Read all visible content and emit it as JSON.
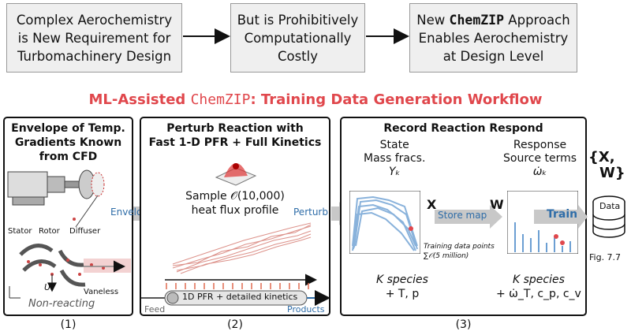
{
  "top": {
    "box1": [
      "Complex Aerochemistry",
      "is New Requirement for",
      "Turbomachinery Design"
    ],
    "box2": [
      "But is Prohibitively",
      "Computationally",
      "Costly"
    ],
    "box3": {
      "pre": "New ",
      "mono": "ChemZIP",
      "post": " Approach",
      "line2": "Enables Aerochemistry",
      "line3": "at Design Level"
    }
  },
  "headline": {
    "pre": "ML-Assisted ",
    "mono": "ChemZIP",
    "post": ": Training Data Generation Workflow",
    "color": "#e0474c"
  },
  "panel1": {
    "title": [
      "Envelope of Temp.",
      "Gradients Known",
      "from CFD"
    ],
    "labels": {
      "stator": "Stator",
      "rotor": "Rotor",
      "diffuser": "Diffuser",
      "vaneless": "Vaneless",
      "u": "U",
      "nonreacting": "Non-reacting"
    },
    "caption": "(1)"
  },
  "panel2": {
    "title": [
      "Perturb Reaction with",
      "Fast 1-D PFR + Full Kinetics"
    ],
    "sample": [
      "Sample 𝒪(10,000)",
      "heat flux profile"
    ],
    "pfr": "1D PFR + detailed kinetics",
    "feed": "Feed",
    "products": "Products",
    "caption": "(2)"
  },
  "panel3": {
    "title": "Record Reaction Respond",
    "state": [
      "State",
      "Mass fracs."
    ],
    "yk": "Yₖ",
    "response": [
      "Response",
      "Source terms"
    ],
    "wk": "ω̇ₖ",
    "X": "X",
    "W": "W",
    "train": "Train",
    "training_pts": [
      "Training data points",
      "∑𝒪(5 million)"
    ],
    "left_bottom": [
      "K species",
      "+ T, p"
    ],
    "right_bottom": [
      "K species",
      "+ ω̇_T, c_p, c_v"
    ],
    "caption": "(3)"
  },
  "arrows": {
    "envelope": "Envelope",
    "perturb": "Perturb",
    "store": "Store map"
  },
  "data": {
    "set": "{X,",
    "set2": "W}",
    "db": "Data",
    "fig": "Fig. 7.7"
  },
  "colors": {
    "accent": "#e0474c",
    "blue": "#2f6da8",
    "gray": "#c8c8c8"
  }
}
